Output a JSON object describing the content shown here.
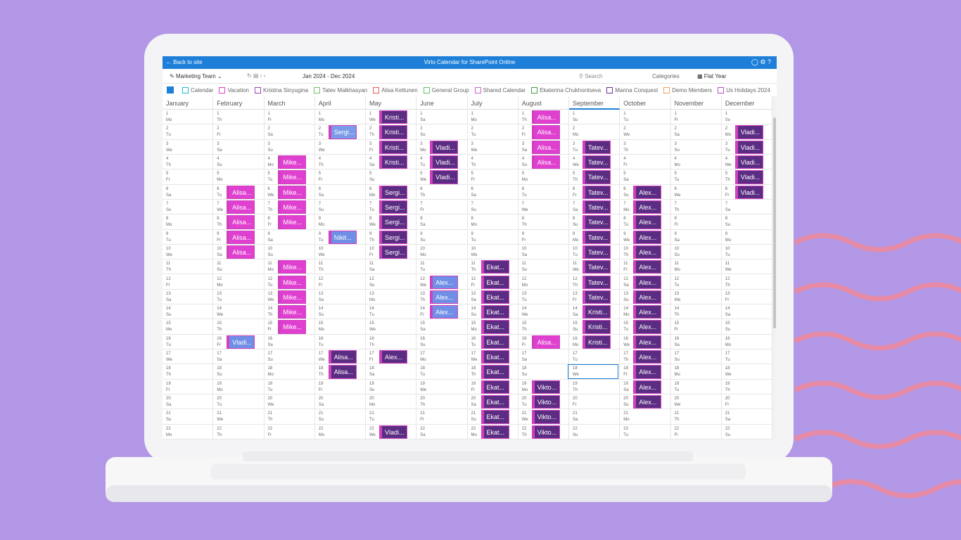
{
  "header": {
    "back": "Back to site",
    "title": "Virto Calendar for SharePoint Online"
  },
  "toolbar": {
    "view": "Marketing Team",
    "range": "Jan 2024 - Dec 2024",
    "search": "Search",
    "categories": "Categories",
    "mode": "Flat Year"
  },
  "legend": [
    {
      "name": "Calendar",
      "color": "#20b8d8"
    },
    {
      "name": "Vacation",
      "color": "#e040d0"
    },
    {
      "name": "Kristina Sinyugina",
      "color": "#a040c0"
    },
    {
      "name": "Tatev Malkhasyan",
      "color": "#70c070"
    },
    {
      "name": "Alisa Kettunen",
      "color": "#e06060"
    },
    {
      "name": "General Group",
      "color": "#60c060"
    },
    {
      "name": "Shared Calendar",
      "color": "#d060d0"
    },
    {
      "name": "Ekaterina Chukhontseva",
      "color": "#40a040"
    },
    {
      "name": "Marina Conquest",
      "color": "#6a3090"
    },
    {
      "name": "Demo Members",
      "color": "#f0a060"
    },
    {
      "name": "Us Holidays 2024",
      "color": "#b050c0"
    }
  ],
  "day_numbers": [
    1,
    2,
    3,
    4,
    5,
    6,
    7,
    8,
    9,
    10,
    11,
    12,
    13,
    14,
    15,
    16,
    17,
    18,
    19,
    20,
    21,
    22
  ],
  "months": [
    {
      "name": "January",
      "weekdays": [
        "Mo",
        "Tu",
        "We",
        "Th",
        "Fr",
        "Sa",
        "Su",
        "Mo",
        "Tu",
        "We",
        "Th",
        "Fr",
        "Sa",
        "Su",
        "Mo",
        "Tu",
        "We",
        "Th",
        "Fr",
        "Sa",
        "Su",
        "Mo"
      ],
      "events": []
    },
    {
      "name": "February",
      "weekdays": [
        "Th",
        "Fr",
        "Sa",
        "Su",
        "Mo",
        "Tu",
        "We",
        "Th",
        "Fr",
        "Sa",
        "Su",
        "Mo",
        "Tu",
        "We",
        "Th",
        "Fr",
        "Sa",
        "Su",
        "Mo",
        "Tu",
        "We",
        "Th"
      ],
      "events": [
        {
          "from": 6,
          "to": 10,
          "label": "Alisa...",
          "color": "#e040d0"
        },
        {
          "from": 16,
          "to": 16,
          "label": "Vladi...",
          "color": "#6f8fe6"
        }
      ]
    },
    {
      "name": "March",
      "weekdays": [
        "Fr",
        "Sa",
        "Su",
        "Mo",
        "Tu",
        "We",
        "Th",
        "Fr",
        "Sa",
        "Su",
        "Mo",
        "Tu",
        "We",
        "Th",
        "Fr",
        "Sa",
        "Su",
        "Mo",
        "Tu",
        "We",
        "Th",
        "Fr"
      ],
      "events": [
        {
          "from": 4,
          "to": 8,
          "label": "Mike...",
          "color": "#e040d0"
        },
        {
          "from": 11,
          "to": 15,
          "label": "Mike...",
          "color": "#e040d0"
        }
      ]
    },
    {
      "name": "April",
      "weekdays": [
        "Mo",
        "Tu",
        "We",
        "Th",
        "Fr",
        "Sa",
        "Su",
        "Mo",
        "Tu",
        "We",
        "Th",
        "Fr",
        "Sa",
        "Su",
        "Mo",
        "Tu",
        "We",
        "Th",
        "Fr",
        "Sa",
        "Su",
        "Mo"
      ],
      "events": [
        {
          "from": 2,
          "to": 2,
          "label": "Sergi...",
          "color": "#7b9be8"
        },
        {
          "from": 9,
          "to": 9,
          "label": "Nikit...",
          "color": "#6f8fe6"
        },
        {
          "from": 17,
          "to": 18,
          "label": "Alisa...",
          "color": "#5b2d82"
        }
      ]
    },
    {
      "name": "May",
      "weekdays": [
        "We",
        "Th",
        "Fr",
        "Sa",
        "Su",
        "Mo",
        "Tu",
        "We",
        "Th",
        "Fr",
        "Sa",
        "Su",
        "Mo",
        "Tu",
        "We",
        "Th",
        "Fr",
        "Sa",
        "Su",
        "Mo",
        "Tu",
        "We"
      ],
      "events": [
        {
          "from": 1,
          "to": 4,
          "label": "Kristi...",
          "color": "#5b2d82"
        },
        {
          "from": 6,
          "to": 10,
          "label": "Sergi...",
          "color": "#5b2d82"
        },
        {
          "from": 17,
          "to": 17,
          "label": "Alex...",
          "color": "#5b2d82"
        },
        {
          "from": 22,
          "to": 22,
          "label": "Vladi...",
          "color": "#5b2d82"
        }
      ]
    },
    {
      "name": "June",
      "weekdays": [
        "Sa",
        "Su",
        "Mo",
        "Tu",
        "We",
        "Th",
        "Fr",
        "Sa",
        "Su",
        "Mo",
        "Tu",
        "We",
        "Th",
        "Fr",
        "Sa",
        "Su",
        "Mo",
        "Tu",
        "We",
        "Th",
        "Fr",
        "Sa"
      ],
      "events": [
        {
          "from": 3,
          "to": 5,
          "label": "Vladi...",
          "color": "#5b2d82"
        },
        {
          "from": 12,
          "to": 14,
          "label": "Alex...",
          "color": "#6f8fe6"
        }
      ]
    },
    {
      "name": "July",
      "weekdays": [
        "Mo",
        "Tu",
        "We",
        "Th",
        "Fr",
        "Sa",
        "Su",
        "Mo",
        "Tu",
        "We",
        "Th",
        "Fr",
        "Sa",
        "Su",
        "Mo",
        "Tu",
        "We",
        "Th",
        "Fr",
        "Sa",
        "Su",
        "Mo"
      ],
      "events": [
        {
          "from": 11,
          "to": 22,
          "label": "Ekat...",
          "color": "#5b2d82"
        }
      ]
    },
    {
      "name": "August",
      "weekdays": [
        "Th",
        "Fr",
        "Sa",
        "Su",
        "Mo",
        "Tu",
        "We",
        "Th",
        "Fr",
        "Sa",
        "Su",
        "Mo",
        "Tu",
        "We",
        "Th",
        "Fr",
        "Sa",
        "Su",
        "Mo",
        "Tu",
        "We",
        "Th"
      ],
      "events": [
        {
          "from": 1,
          "to": 4,
          "label": "Alisa...",
          "color": "#e040d0"
        },
        {
          "from": 16,
          "to": 16,
          "label": "Alisa...",
          "color": "#e040d0"
        },
        {
          "from": 19,
          "to": 22,
          "label": "Vikto...",
          "color": "#5b2d82"
        }
      ]
    },
    {
      "name": "September",
      "weekdays": [
        "Su",
        "Mo",
        "Tu",
        "We",
        "Th",
        "Fr",
        "Sa",
        "Su",
        "Mo",
        "Tu",
        "We",
        "Th",
        "Fr",
        "Sa",
        "Su",
        "Mo",
        "Tu",
        "We",
        "Th",
        "Fr",
        "Sa",
        "Su"
      ],
      "events": [
        {
          "from": 3,
          "to": 13,
          "label": "Tatev...",
          "color": "#5b2d82"
        },
        {
          "from": 14,
          "to": 16,
          "label": "Kristi...",
          "color": "#5b2d82"
        }
      ]
    },
    {
      "name": "October",
      "weekdays": [
        "Tu",
        "We",
        "Th",
        "Fr",
        "Sa",
        "Su",
        "Mo",
        "Tu",
        "We",
        "Th",
        "Fr",
        "Sa",
        "Su",
        "Mo",
        "Tu",
        "We",
        "Th",
        "Fr",
        "Sa",
        "Su",
        "Mo",
        "Tu"
      ],
      "events": [
        {
          "from": 6,
          "to": 20,
          "label": "Alex...",
          "color": "#5b2d82"
        }
      ]
    },
    {
      "name": "November",
      "weekdays": [
        "Fr",
        "Sa",
        "Su",
        "Mo",
        "Tu",
        "We",
        "Th",
        "Fr",
        "Sa",
        "Su",
        "Mo",
        "Tu",
        "We",
        "Th",
        "Fr",
        "Sa",
        "Su",
        "Mo",
        "Tu",
        "We",
        "Th",
        "Fr"
      ],
      "events": []
    },
    {
      "name": "December",
      "weekdays": [
        "Su",
        "Mo",
        "Tu",
        "We",
        "Th",
        "Fr",
        "Sa",
        "Su",
        "Mo",
        "Tu",
        "We",
        "Th",
        "Fr",
        "Sa",
        "Su",
        "Mo",
        "Tu",
        "We",
        "Th",
        "Fr",
        "Sa",
        "Su"
      ],
      "events": [
        {
          "from": 2,
          "to": 6,
          "label": "Vladi...",
          "color": "#5b2d82"
        }
      ]
    }
  ]
}
